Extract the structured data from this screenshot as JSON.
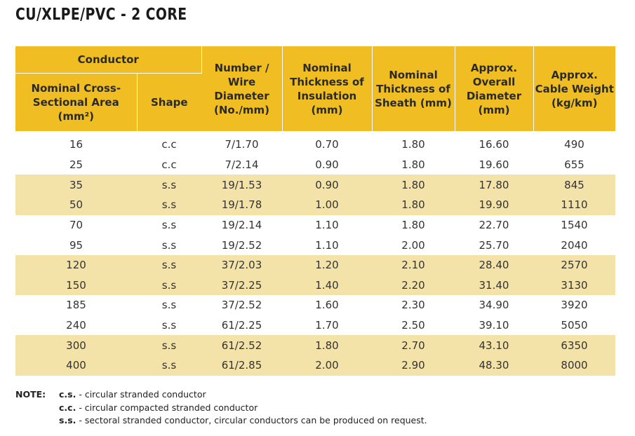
{
  "title": "CU/XLPE/PVC - 2 CORE",
  "header": {
    "conductor": "Conductor",
    "area": "Nominal Cross-Sectional Area (mm²)",
    "shape": "Shape",
    "wire": "Number / Wire Diameter (No./mm)",
    "insulation": "Nominal Thickness of Insulation (mm)",
    "sheath": "Nominal Thickness of Sheath (mm)",
    "diameter": "Approx. Overall Diameter (mm)",
    "weight": "Approx. Cable Weight (kg/km)"
  },
  "rows": [
    {
      "area": "16",
      "shape": "c.c",
      "wire": "7/1.70",
      "insulation": "0.70",
      "sheath": "1.80",
      "diameter": "16.60",
      "weight": "490"
    },
    {
      "area": "25",
      "shape": "c.c",
      "wire": "7/2.14",
      "insulation": "0.90",
      "sheath": "1.80",
      "diameter": "19.60",
      "weight": "655"
    },
    {
      "area": "35",
      "shape": "s.s",
      "wire": "19/1.53",
      "insulation": "0.90",
      "sheath": "1.80",
      "diameter": "17.80",
      "weight": "845"
    },
    {
      "area": "50",
      "shape": "s.s",
      "wire": "19/1.78",
      "insulation": "1.00",
      "sheath": "1.80",
      "diameter": "19.90",
      "weight": "1110"
    },
    {
      "area": "70",
      "shape": "s.s",
      "wire": "19/2.14",
      "insulation": "1.10",
      "sheath": "1.80",
      "diameter": "22.70",
      "weight": "1540"
    },
    {
      "area": "95",
      "shape": "s.s",
      "wire": "19/2.52",
      "insulation": "1.10",
      "sheath": "2.00",
      "diameter": "25.70",
      "weight": "2040"
    },
    {
      "area": "120",
      "shape": "s.s",
      "wire": "37/2.03",
      "insulation": "1.20",
      "sheath": "2.10",
      "diameter": "28.40",
      "weight": "2570"
    },
    {
      "area": "150",
      "shape": "s.s",
      "wire": "37/2.25",
      "insulation": "1.40",
      "sheath": "2.20",
      "diameter": "31.40",
      "weight": "3130"
    },
    {
      "area": "185",
      "shape": "s.s",
      "wire": "37/2.52",
      "insulation": "1.60",
      "sheath": "2.30",
      "diameter": "34.90",
      "weight": "3920"
    },
    {
      "area": "240",
      "shape": "s.s",
      "wire": "61/2.25",
      "insulation": "1.70",
      "sheath": "2.50",
      "diameter": "39.10",
      "weight": "5050"
    },
    {
      "area": "300",
      "shape": "s.s",
      "wire": "61/2.52",
      "insulation": "1.80",
      "sheath": "2.70",
      "diameter": "43.10",
      "weight": "6350"
    },
    {
      "area": "400",
      "shape": "s.s",
      "wire": "61/2.85",
      "insulation": "2.00",
      "sheath": "2.90",
      "diameter": "48.30",
      "weight": "8000"
    }
  ],
  "notes": {
    "label": "NOTE:",
    "items": [
      {
        "code": "c.s.",
        "text": "- circular stranded conductor"
      },
      {
        "code": "c.c.",
        "text": "- circular compacted stranded conductor"
      },
      {
        "code": "s.s.",
        "text": "- sectoral stranded conductor, circular conductors can be produced on request."
      }
    ]
  },
  "colors": {
    "header": "#f0be22",
    "band": "#f4e3a9"
  }
}
